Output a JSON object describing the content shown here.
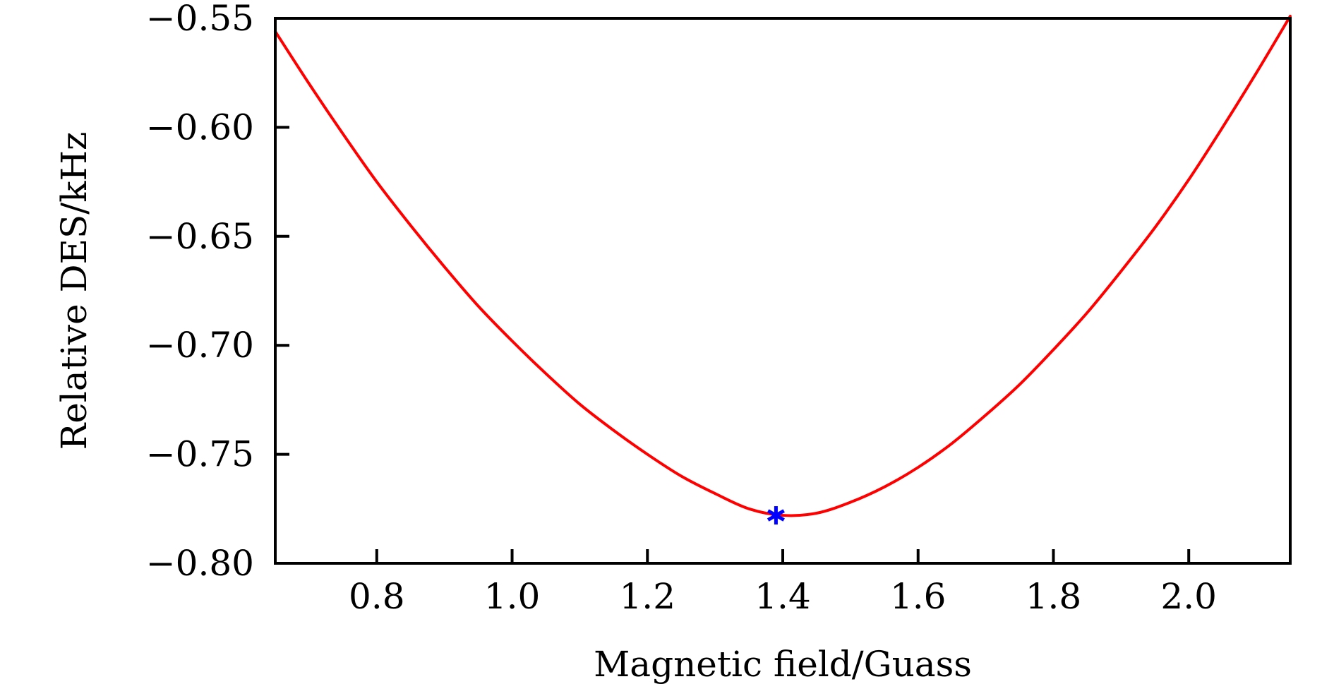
{
  "chart_data": {
    "type": "line",
    "title": "",
    "xlabel": "Magnetic field/Guass",
    "ylabel": "Relative DES/kHz",
    "xlim": [
      0.65,
      2.15
    ],
    "ylim": [
      -0.8,
      -0.55
    ],
    "x_ticks": [
      0.8,
      1.0,
      1.2,
      1.4,
      1.6,
      1.8,
      2.0
    ],
    "x_tick_labels": [
      "0.8",
      "1.0",
      "1.2",
      "1.4",
      "1.6",
      "1.8",
      "2.0"
    ],
    "y_ticks": [
      -0.55,
      -0.6,
      -0.65,
      -0.7,
      -0.75,
      -0.8
    ],
    "y_tick_labels": [
      "−0.55",
      "−0.60",
      "−0.65",
      "−0.70",
      "−0.75",
      "−0.80"
    ],
    "grid": false,
    "series": [
      {
        "name": "Relative DES",
        "color": "#ff0000",
        "x": [
          0.65,
          0.7,
          0.75,
          0.8,
          0.85,
          0.9,
          0.95,
          1.0,
          1.05,
          1.1,
          1.15,
          1.2,
          1.25,
          1.3,
          1.35,
          1.4,
          1.45,
          1.5,
          1.55,
          1.6,
          1.65,
          1.7,
          1.75,
          1.8,
          1.85,
          1.9,
          1.95,
          2.0,
          2.05,
          2.1,
          2.15
        ],
        "values": [
          -0.556,
          -0.58,
          -0.603,
          -0.625,
          -0.645,
          -0.664,
          -0.682,
          -0.698,
          -0.713,
          -0.727,
          -0.739,
          -0.75,
          -0.76,
          -0.768,
          -0.775,
          -0.778,
          -0.777,
          -0.772,
          -0.765,
          -0.756,
          -0.745,
          -0.732,
          -0.718,
          -0.702,
          -0.685,
          -0.666,
          -0.646,
          -0.624,
          -0.6,
          -0.575,
          -0.549
        ]
      }
    ],
    "marker": {
      "name": "Minimum",
      "symbol": "*",
      "color": "#0000ff",
      "x": 1.39,
      "y": -0.778
    }
  }
}
